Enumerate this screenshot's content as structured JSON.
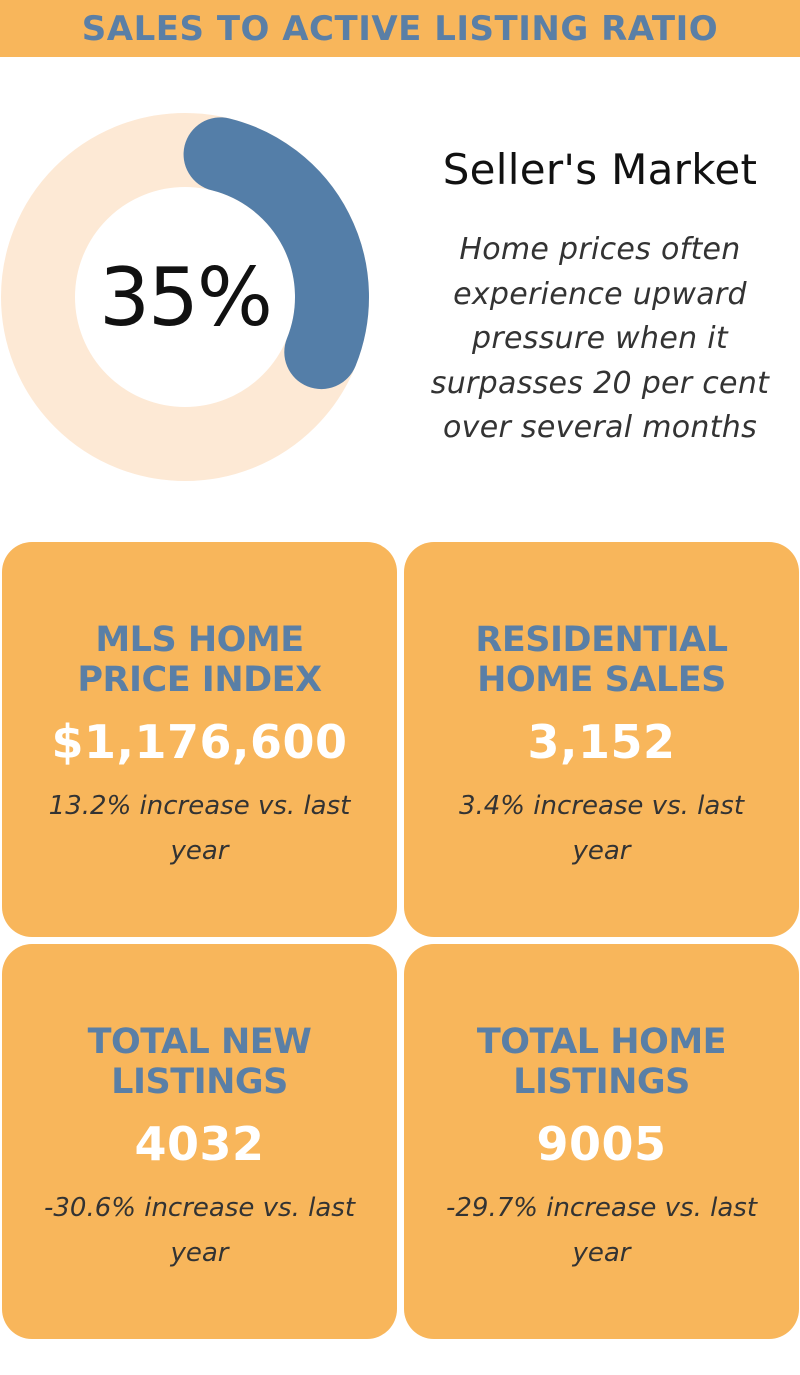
{
  "header": {
    "title": "SALES TO ACTIVE LISTING RATIO"
  },
  "chart_data": {
    "type": "pie",
    "values": [
      35,
      65
    ],
    "categories": [
      "",
      ""
    ],
    "center_label": "35%",
    "colors": [
      "#547ea8",
      "#fde9d5"
    ]
  },
  "market": {
    "title": "Seller's Market",
    "description": "Home prices often experience upward pressure when it surpasses 20 per cent over several months"
  },
  "cards": [
    {
      "title": "MLS HOME\nPRICE INDEX",
      "value": "$1,176,600",
      "note": "13.2% increase vs. last year"
    },
    {
      "title": "RESIDENTIAL\nHOME SALES",
      "value": "3,152",
      "note": "3.4% increase vs. last year"
    },
    {
      "title": "TOTAL NEW\nLISTINGS",
      "value": "4032",
      "note": "-30.6% increase vs. last year"
    },
    {
      "title": "TOTAL HOME\nLISTINGS",
      "value": "9005",
      "note": "-29.7% increase vs. last year"
    }
  ],
  "colors": {
    "banner": "#f8b65b",
    "title_blue": "#5a7fa6",
    "card": "#f8b65b",
    "donut_track": "#fde9d5",
    "donut_value": "#547ea8"
  }
}
